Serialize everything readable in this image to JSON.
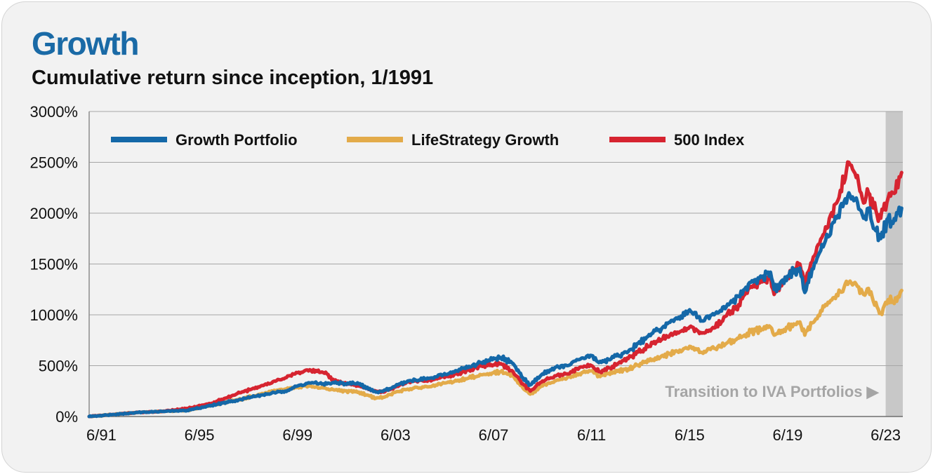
{
  "header": {
    "title": "Growth",
    "subtitle": "Cumulative return since inception, 1/1991"
  },
  "colors": {
    "title": "#1a6aa6",
    "growth_portfolio": "#1468a8",
    "lifestrategy_growth": "#e3ab4a",
    "index_500": "#d62430",
    "grid": "#a6a6a6",
    "shade": "#c8c8c8",
    "annotation": "#a5a5a5"
  },
  "chart_data": {
    "type": "line",
    "title": "Growth",
    "subtitle": "Cumulative return since inception, 1/1991",
    "xlabel": "",
    "ylabel": "",
    "xlim": [
      1991.0,
      2024.2
    ],
    "ylim": [
      0,
      3000
    ],
    "y_ticks": [
      "0%",
      "500%",
      "1000%",
      "1500%",
      "2000%",
      "2500%",
      "3000%"
    ],
    "x_ticks": [
      {
        "label": "6/91",
        "x": 1991.5
      },
      {
        "label": "6/95",
        "x": 1995.5
      },
      {
        "label": "6/99",
        "x": 1999.5
      },
      {
        "label": "6/03",
        "x": 2003.5
      },
      {
        "label": "6/07",
        "x": 2007.5
      },
      {
        "label": "6/11",
        "x": 2011.5
      },
      {
        "label": "6/15",
        "x": 2015.5
      },
      {
        "label": "6/19",
        "x": 2019.5
      },
      {
        "label": "6/23",
        "x": 2023.5
      }
    ],
    "grid": "horizontal",
    "legend_position": "top-left",
    "shaded_region": {
      "from": 2023.5,
      "to": 2024.2,
      "annotation": "Transition to IVA Portfolios ▶"
    },
    "series": [
      {
        "name": "Growth Portfolio",
        "color": "#1468a8",
        "points": [
          [
            1991.0,
            0
          ],
          [
            1992.0,
            20
          ],
          [
            1993.0,
            40
          ],
          [
            1994.0,
            50
          ],
          [
            1995.0,
            60
          ],
          [
            1996.0,
            110
          ],
          [
            1997.0,
            160
          ],
          [
            1998.0,
            210
          ],
          [
            1999.0,
            250
          ],
          [
            1999.5,
            300
          ],
          [
            2000.0,
            330
          ],
          [
            2000.7,
            320
          ],
          [
            2001.0,
            330
          ],
          [
            2002.0,
            320
          ],
          [
            2002.7,
            240
          ],
          [
            2003.0,
            250
          ],
          [
            2003.5,
            300
          ],
          [
            2004.0,
            350
          ],
          [
            2005.0,
            380
          ],
          [
            2006.0,
            450
          ],
          [
            2007.0,
            530
          ],
          [
            2007.8,
            580
          ],
          [
            2008.3,
            520
          ],
          [
            2008.7,
            380
          ],
          [
            2009.0,
            310
          ],
          [
            2009.5,
            420
          ],
          [
            2010.0,
            480
          ],
          [
            2010.5,
            500
          ],
          [
            2011.0,
            560
          ],
          [
            2011.5,
            600
          ],
          [
            2011.8,
            530
          ],
          [
            2012.0,
            540
          ],
          [
            2013.0,
            640
          ],
          [
            2014.0,
            820
          ],
          [
            2015.0,
            960
          ],
          [
            2015.5,
            1050
          ],
          [
            2016.0,
            940
          ],
          [
            2016.5,
            1000
          ],
          [
            2017.0,
            1080
          ],
          [
            2017.5,
            1180
          ],
          [
            2018.0,
            1320
          ],
          [
            2018.8,
            1420
          ],
          [
            2018.95,
            1250
          ],
          [
            2019.5,
            1380
          ],
          [
            2020.0,
            1460
          ],
          [
            2020.2,
            1220
          ],
          [
            2020.5,
            1450
          ],
          [
            2021.0,
            1700
          ],
          [
            2021.5,
            1950
          ],
          [
            2022.0,
            2200
          ],
          [
            2022.3,
            2150
          ],
          [
            2022.6,
            1950
          ],
          [
            2022.8,
            2050
          ],
          [
            2023.0,
            1850
          ],
          [
            2023.3,
            1750
          ],
          [
            2023.6,
            1950
          ],
          [
            2023.8,
            1900
          ],
          [
            2024.0,
            2000
          ],
          [
            2024.15,
            2050
          ]
        ]
      },
      {
        "name": "LifeStrategy Growth",
        "color": "#e3ab4a",
        "points": [
          [
            1991.0,
            0
          ],
          [
            1992.0,
            20
          ],
          [
            1993.0,
            40
          ],
          [
            1994.0,
            50
          ],
          [
            1995.0,
            60
          ],
          [
            1996.0,
            110
          ],
          [
            1997.0,
            160
          ],
          [
            1998.0,
            220
          ],
          [
            1999.0,
            270
          ],
          [
            1999.5,
            290
          ],
          [
            2000.0,
            300
          ],
          [
            2000.7,
            270
          ],
          [
            2001.0,
            260
          ],
          [
            2002.0,
            240
          ],
          [
            2002.7,
            180
          ],
          [
            2003.0,
            190
          ],
          [
            2003.5,
            240
          ],
          [
            2004.0,
            270
          ],
          [
            2005.0,
            300
          ],
          [
            2006.0,
            350
          ],
          [
            2007.0,
            410
          ],
          [
            2007.8,
            440
          ],
          [
            2008.3,
            400
          ],
          [
            2008.7,
            280
          ],
          [
            2009.0,
            220
          ],
          [
            2009.5,
            300
          ],
          [
            2010.0,
            350
          ],
          [
            2010.5,
            380
          ],
          [
            2011.0,
            420
          ],
          [
            2011.5,
            450
          ],
          [
            2011.8,
            400
          ],
          [
            2012.0,
            410
          ],
          [
            2013.0,
            470
          ],
          [
            2014.0,
            560
          ],
          [
            2015.0,
            640
          ],
          [
            2015.5,
            690
          ],
          [
            2016.0,
            630
          ],
          [
            2016.5,
            670
          ],
          [
            2017.0,
            720
          ],
          [
            2017.5,
            770
          ],
          [
            2018.0,
            830
          ],
          [
            2018.8,
            880
          ],
          [
            2018.95,
            800
          ],
          [
            2019.5,
            870
          ],
          [
            2020.0,
            930
          ],
          [
            2020.2,
            800
          ],
          [
            2020.5,
            920
          ],
          [
            2021.0,
            1080
          ],
          [
            2021.5,
            1200
          ],
          [
            2022.0,
            1320
          ],
          [
            2022.3,
            1300
          ],
          [
            2022.6,
            1200
          ],
          [
            2022.8,
            1260
          ],
          [
            2023.0,
            1130
          ],
          [
            2023.3,
            1020
          ],
          [
            2023.6,
            1150
          ],
          [
            2023.8,
            1130
          ],
          [
            2024.0,
            1180
          ],
          [
            2024.15,
            1240
          ]
        ]
      },
      {
        "name": "500 Index",
        "color": "#d62430",
        "points": [
          [
            1991.0,
            0
          ],
          [
            1992.0,
            20
          ],
          [
            1993.0,
            40
          ],
          [
            1994.0,
            50
          ],
          [
            1995.0,
            80
          ],
          [
            1996.0,
            130
          ],
          [
            1997.0,
            220
          ],
          [
            1998.0,
            300
          ],
          [
            1999.0,
            380
          ],
          [
            1999.5,
            430
          ],
          [
            2000.0,
            460
          ],
          [
            2000.7,
            420
          ],
          [
            2001.0,
            350
          ],
          [
            2002.0,
            300
          ],
          [
            2002.7,
            250
          ],
          [
            2003.0,
            240
          ],
          [
            2003.5,
            290
          ],
          [
            2004.0,
            340
          ],
          [
            2005.0,
            360
          ],
          [
            2006.0,
            420
          ],
          [
            2007.0,
            500
          ],
          [
            2007.8,
            520
          ],
          [
            2008.3,
            440
          ],
          [
            2008.7,
            320
          ],
          [
            2009.0,
            250
          ],
          [
            2009.5,
            350
          ],
          [
            2010.0,
            400
          ],
          [
            2010.5,
            420
          ],
          [
            2011.0,
            480
          ],
          [
            2011.5,
            500
          ],
          [
            2011.8,
            440
          ],
          [
            2012.0,
            450
          ],
          [
            2013.0,
            570
          ],
          [
            2014.0,
            720
          ],
          [
            2015.0,
            830
          ],
          [
            2015.5,
            880
          ],
          [
            2016.0,
            820
          ],
          [
            2016.5,
            870
          ],
          [
            2017.0,
            990
          ],
          [
            2017.5,
            1100
          ],
          [
            2018.0,
            1280
          ],
          [
            2018.8,
            1380
          ],
          [
            2018.95,
            1200
          ],
          [
            2019.5,
            1380
          ],
          [
            2020.0,
            1500
          ],
          [
            2020.2,
            1300
          ],
          [
            2020.5,
            1520
          ],
          [
            2021.0,
            1800
          ],
          [
            2021.5,
            2100
          ],
          [
            2022.0,
            2500
          ],
          [
            2022.3,
            2350
          ],
          [
            2022.6,
            2100
          ],
          [
            2022.8,
            2200
          ],
          [
            2023.0,
            2050
          ],
          [
            2023.3,
            1950
          ],
          [
            2023.6,
            2150
          ],
          [
            2023.8,
            2200
          ],
          [
            2024.0,
            2250
          ],
          [
            2024.15,
            2400
          ]
        ]
      }
    ]
  }
}
